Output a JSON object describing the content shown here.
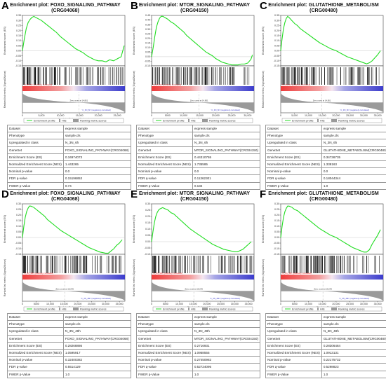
{
  "colors": {
    "es_line": "#22dd22",
    "hits": "#000000",
    "pos_corr": "#ee3b3b",
    "neg_corr": "#3b3bcc",
    "metric": "#9a9a9a"
  },
  "table_labels": [
    "Dataset",
    "Phenotype",
    "Upregulated in class",
    "GeneSet",
    "Enrichment Score (ES)",
    "Normalized Enrichment Score (NES)",
    "Nominal p-value",
    "FDR q-value",
    "FWER p-Value"
  ],
  "chart_data": [
    {
      "type": "line",
      "letter": "A",
      "title": "Enrichment plot: FOXO_SIGNALING_PATHWAY",
      "subtitle": "(CRG04068)",
      "ylabel": "Enrichment score (ES)",
      "metric_ylabel": "Ranked list metric (Signal2Noise)",
      "xlabel": "Rank in Ordered Dataset",
      "yticks": [
        "0.35",
        "0.30",
        "0.25",
        "0.20",
        "0.15",
        "0.10",
        "0.05",
        "0.00",
        "-0.05",
        "-0.10",
        "-0.15"
      ],
      "ylim": [
        -0.15,
        0.35
      ],
      "xticks": [
        "0",
        "5,000",
        "10,000",
        "15,000",
        "20,000",
        "25,000"
      ],
      "xlim": [
        0,
        27000
      ],
      "x": [
        0,
        500,
        1000,
        1500,
        2000,
        2500,
        3000,
        3500,
        4000,
        5000,
        6000,
        7000,
        8000,
        9000,
        10000,
        11000,
        12000,
        13000,
        14000,
        15000,
        16000,
        17000,
        18000,
        19000,
        20000,
        21000,
        22000,
        23000,
        24000,
        25000,
        26000,
        26800
      ],
      "es": [
        0,
        0.12,
        0.22,
        0.28,
        0.31,
        0.33,
        0.34,
        0.33,
        0.32,
        0.3,
        0.27,
        0.24,
        0.21,
        0.18,
        0.14,
        0.11,
        0.08,
        0.05,
        0.02,
        0.0,
        -0.02,
        -0.05,
        -0.07,
        -0.09,
        -0.1,
        -0.1,
        -0.11,
        -0.09,
        -0.1,
        -0.08,
        -0.06,
        0.05
      ],
      "pos_label": "'N_3N_6h' (positively correlated)",
      "neg_label": "'C_3N_6h' (negatively correlated)",
      "zero_cross": "Zero cross at 14,851",
      "zero_x": 14851,
      "legend": [
        "Enrichment profile",
        "Hits",
        "Ranking metric scores"
      ],
      "table": [
        "express sample",
        "sample.cls",
        "N_3N_6h",
        "FOXO_SIGNALING_PATHWAY(CRG04068)",
        "0.34974073",
        "1.443265",
        "0.0",
        "0.15196853",
        "0.74"
      ]
    },
    {
      "type": "line",
      "letter": "B",
      "title": "Enrichment plot: MTOR_SIGNALING_PATHWAY",
      "subtitle": "(CRG04150)",
      "ylabel": "Enrichment score (ES)",
      "metric_ylabel": "Ranked list metric (Signal2Noise)",
      "xlabel": "Rank in Ordered Dataset",
      "yticks": [
        "0.45",
        "0.40",
        "0.35",
        "0.30",
        "0.25",
        "0.20",
        "0.15",
        "0.10",
        "0.05",
        "0.00",
        "-0.05",
        "-0.10"
      ],
      "ylim": [
        -0.1,
        0.45
      ],
      "xticks": [
        "0",
        "5000",
        "10,000",
        "15,000",
        "20,000",
        "25,000",
        "30,000"
      ],
      "xlim": [
        0,
        32000
      ],
      "x": [
        0,
        500,
        1000,
        1500,
        2000,
        2500,
        3000,
        3500,
        4000,
        5000,
        6000,
        7000,
        8000,
        9000,
        10000,
        11000,
        12000,
        13000,
        14000,
        15000,
        16000,
        17000,
        18000,
        19000,
        20000,
        21000,
        22000,
        23000,
        24000,
        25000,
        26000,
        27000,
        28000,
        29000,
        30000,
        31000,
        31500
      ],
      "es": [
        0,
        0.1,
        0.22,
        0.32,
        0.38,
        0.42,
        0.44,
        0.44,
        0.43,
        0.41,
        0.38,
        0.36,
        0.33,
        0.3,
        0.27,
        0.23,
        0.2,
        0.17,
        0.14,
        0.11,
        0.08,
        0.05,
        0.03,
        0.01,
        -0.02,
        -0.04,
        -0.06,
        -0.07,
        -0.08,
        -0.09,
        -0.09,
        -0.09,
        -0.08,
        -0.08,
        -0.07,
        -0.03,
        0.02
      ],
      "pos_label": "'N_3N_6h' (positively correlated)",
      "neg_label": "'C_3N_6h' (negatively correlated)",
      "zero_cross": "Zero cross at 14,851",
      "zero_x": 14851,
      "legend": [
        "Enrichment profile",
        "Hits",
        "Ranking metric scores"
      ],
      "table": [
        "express sample",
        "sample.cls",
        "N_3N_6h",
        "MTOR_SIGNALING_PATHWAY(CRG04150)",
        "0.44310755",
        "1.735585",
        "0.0",
        "0.11362301",
        "0.182"
      ]
    },
    {
      "type": "line",
      "letter": "C",
      "title": "Enrichment plot: GLUTATHIONE_METABOLISM",
      "subtitle": "(CRG00480)",
      "ylabel": "Enrichment score (ES)",
      "metric_ylabel": "Ranked list metric (Signal2Noise)",
      "xlabel": "Rank in Ordered Dataset",
      "yticks": [
        "0.35",
        "0.30",
        "0.25",
        "0.20",
        "0.15",
        "0.10",
        "0.05",
        "0.00",
        "-0.05",
        "-0.10",
        "-0.15"
      ],
      "ylim": [
        -0.15,
        0.35
      ],
      "xticks": [
        "0",
        "5,000",
        "10,000",
        "15,000",
        "20,000",
        "25,000",
        "30,000",
        "35,000"
      ],
      "xlim": [
        0,
        37000
      ],
      "x": [
        0,
        500,
        1000,
        1500,
        2000,
        2500,
        3000,
        4000,
        5000,
        6000,
        7000,
        8000,
        9000,
        10000,
        12000,
        14000,
        16000,
        18000,
        20000,
        22000,
        24000,
        26000,
        28000,
        30000,
        31000,
        32000,
        33000,
        34000,
        35000,
        36000
      ],
      "es": [
        0,
        0.12,
        0.22,
        0.28,
        0.32,
        0.34,
        0.33,
        0.3,
        0.27,
        0.25,
        0.22,
        0.2,
        0.18,
        0.16,
        0.12,
        0.08,
        0.05,
        0.02,
        0.0,
        -0.03,
        -0.06,
        -0.08,
        -0.1,
        -0.12,
        -0.13,
        -0.12,
        -0.1,
        -0.07,
        -0.04,
        0.0
      ],
      "pos_label": "'N_3N_6h' (positively correlated)",
      "neg_label": "'C_3N_6h' (negatively correlated)",
      "zero_cross": "Zero cross at 14,851",
      "zero_x": 14851,
      "legend": [
        "Enrichment profile",
        "Hits",
        "Ranking metric scores"
      ],
      "table": [
        "express sample",
        "sample.cls",
        "N_3N_6h",
        "GLUTATHIONE_METABOLISM(CRG00480)",
        "0.34736735",
        "1.338163",
        "0.0",
        "0.18044344",
        "1.0"
      ]
    },
    {
      "type": "line",
      "letter": "D",
      "title": "Enrichment plot: FOXO_SIGNALING_PATHWAY",
      "subtitle": "(CRG04068)",
      "ylabel": "Enrichment score (ES)",
      "metric_ylabel": "Ranked list metric (Signal2Noise)",
      "xlabel": "Rank in Ordered Dataset",
      "yticks": [
        "0.30",
        "0.25",
        "0.20",
        "0.15",
        "0.10",
        "0.05",
        "0.00",
        "-0.05",
        "-0.10",
        "-0.15"
      ],
      "ylim": [
        -0.15,
        0.3
      ],
      "xticks": [
        "0",
        "5000",
        "10,000",
        "15,000",
        "20,000",
        "25,000",
        "30,000",
        "35,000"
      ],
      "xlim": [
        0,
        37000
      ],
      "x": [
        0,
        500,
        1000,
        1500,
        2000,
        2500,
        3000,
        4000,
        5000,
        6000,
        7000,
        8000,
        9000,
        10000,
        12000,
        14000,
        16000,
        18000,
        20000,
        22000,
        24000,
        26000,
        28000,
        30000,
        31000,
        32000,
        33000,
        34000,
        35000,
        36000
      ],
      "es": [
        0,
        0.1,
        0.18,
        0.23,
        0.26,
        0.28,
        0.28,
        0.27,
        0.25,
        0.23,
        0.21,
        0.19,
        0.16,
        0.14,
        0.1,
        0.06,
        0.03,
        0.0,
        -0.03,
        -0.06,
        -0.09,
        -0.11,
        -0.13,
        -0.14,
        -0.14,
        -0.12,
        -0.1,
        -0.07,
        -0.05,
        -0.02
      ],
      "pos_label": "'N_3N_48h' (positively correlated)",
      "neg_label": "'C_3N_48h' (negatively correlated)",
      "zero_cross": "Zero cross at 15,245",
      "zero_x": 15245,
      "legend": [
        "Enrichment profile",
        "Hits",
        "Ranking metric scores"
      ],
      "table": [
        "express sample",
        "sample.cls",
        "N_3N_48h",
        "FOXO_SIGNALING_PATHWAY(CRG04068)",
        "0.28268886",
        "1.0595917",
        "0.32400382",
        "0.5514129",
        "1.0"
      ]
    },
    {
      "type": "line",
      "letter": "E",
      "title": "Enrichment plot: MTOR_SIGNALING_PATHWAY",
      "subtitle": "(CRG04150)",
      "ylabel": "Enrichment score (ES)",
      "metric_ylabel": "Ranked list metric (Signal2Noise)",
      "xlabel": "Rank in Ordered Dataset",
      "yticks": [
        "0.30",
        "0.25",
        "0.20",
        "0.15",
        "0.10",
        "0.05",
        "0.00",
        "-0.05",
        "-0.10"
      ],
      "ylim": [
        -0.1,
        0.3
      ],
      "xticks": [
        "0",
        "5000",
        "10,000",
        "15,000",
        "20,000",
        "25,000",
        "30,000",
        "35,000"
      ],
      "xlim": [
        0,
        37000
      ],
      "x": [
        0,
        500,
        1000,
        1500,
        2000,
        2500,
        3000,
        4000,
        5000,
        6000,
        7000,
        8000,
        9000,
        10000,
        12000,
        14000,
        16000,
        18000,
        20000,
        22000,
        24000,
        26000,
        28000,
        30000,
        31000,
        32000,
        33000,
        34000,
        35000,
        36000
      ],
      "es": [
        0,
        0.08,
        0.15,
        0.2,
        0.23,
        0.25,
        0.26,
        0.27,
        0.26,
        0.25,
        0.23,
        0.22,
        0.2,
        0.18,
        0.14,
        0.1,
        0.07,
        0.04,
        0.01,
        -0.02,
        -0.04,
        -0.06,
        -0.07,
        -0.08,
        -0.08,
        -0.07,
        -0.06,
        -0.04,
        -0.02,
        0.0
      ],
      "pos_label": "'N_3N_48h' (positively correlated)",
      "neg_label": "'C_3N_48h' (negatively correlated)",
      "zero_cross": "Zero cross at 15,245",
      "zero_x": 15245,
      "legend": [
        "Enrichment profile",
        "Hits",
        "Ranking metric scores"
      ],
      "table": [
        "express sample",
        "sample.cls",
        "N_3N_48h",
        "MTOR_SIGNALING_PATHWAY(CRG04150)",
        "0.2716931",
        "1.0958555",
        "0.27450982",
        "0.52724095",
        "1.0"
      ]
    },
    {
      "type": "line",
      "letter": "F",
      "title": "Enrichment plot: GLUTATHIONE_METABOLISM",
      "subtitle": "(CRG00480)",
      "ylabel": "Enrichment score (ES)",
      "metric_ylabel": "Ranked list metric (Signal2Noise)",
      "xlabel": "Rank in Ordered Dataset",
      "yticks": [
        "0.30",
        "0.25",
        "0.20",
        "0.15",
        "0.10",
        "0.05",
        "0.00",
        "-0.05",
        "-0.10",
        "-0.15"
      ],
      "ylim": [
        -0.15,
        0.3
      ],
      "xticks": [
        "0",
        "5000",
        "10,000",
        "15,000",
        "20,000",
        "25,000",
        "30,000",
        "35,000"
      ],
      "xlim": [
        0,
        37000
      ],
      "x": [
        0,
        500,
        1000,
        1500,
        2000,
        2500,
        3000,
        4000,
        5000,
        6000,
        7000,
        8000,
        9000,
        10000,
        12000,
        14000,
        16000,
        18000,
        20000,
        22000,
        24000,
        26000,
        28000,
        30000,
        31000,
        32000,
        33000,
        34000,
        35000,
        36000
      ],
      "es": [
        0,
        0.1,
        0.18,
        0.23,
        0.26,
        0.28,
        0.28,
        0.27,
        0.25,
        0.24,
        0.22,
        0.2,
        0.18,
        0.16,
        0.12,
        0.08,
        0.05,
        0.02,
        0.0,
        -0.03,
        -0.06,
        -0.09,
        -0.11,
        -0.13,
        -0.13,
        -0.11,
        -0.06,
        -0.02,
        0.02,
        0.07
      ],
      "pos_label": "'N_3N_48h' (positively correlated)",
      "neg_label": "'C_3N_48h' (negatively correlated)",
      "zero_cross": "Zero cross at 15,245",
      "zero_x": 15245,
      "legend": [
        "Enrichment profile",
        "Hits",
        "Ranking metric scores"
      ],
      "table": [
        "express sample",
        "sample.cls",
        "N_3N_48h",
        "GLUTATHIONE_METABOLISM(CRG00480)",
        "0.28306484",
        "1.0913131",
        "0.22175732",
        "0.5298823",
        "1.0"
      ]
    }
  ]
}
